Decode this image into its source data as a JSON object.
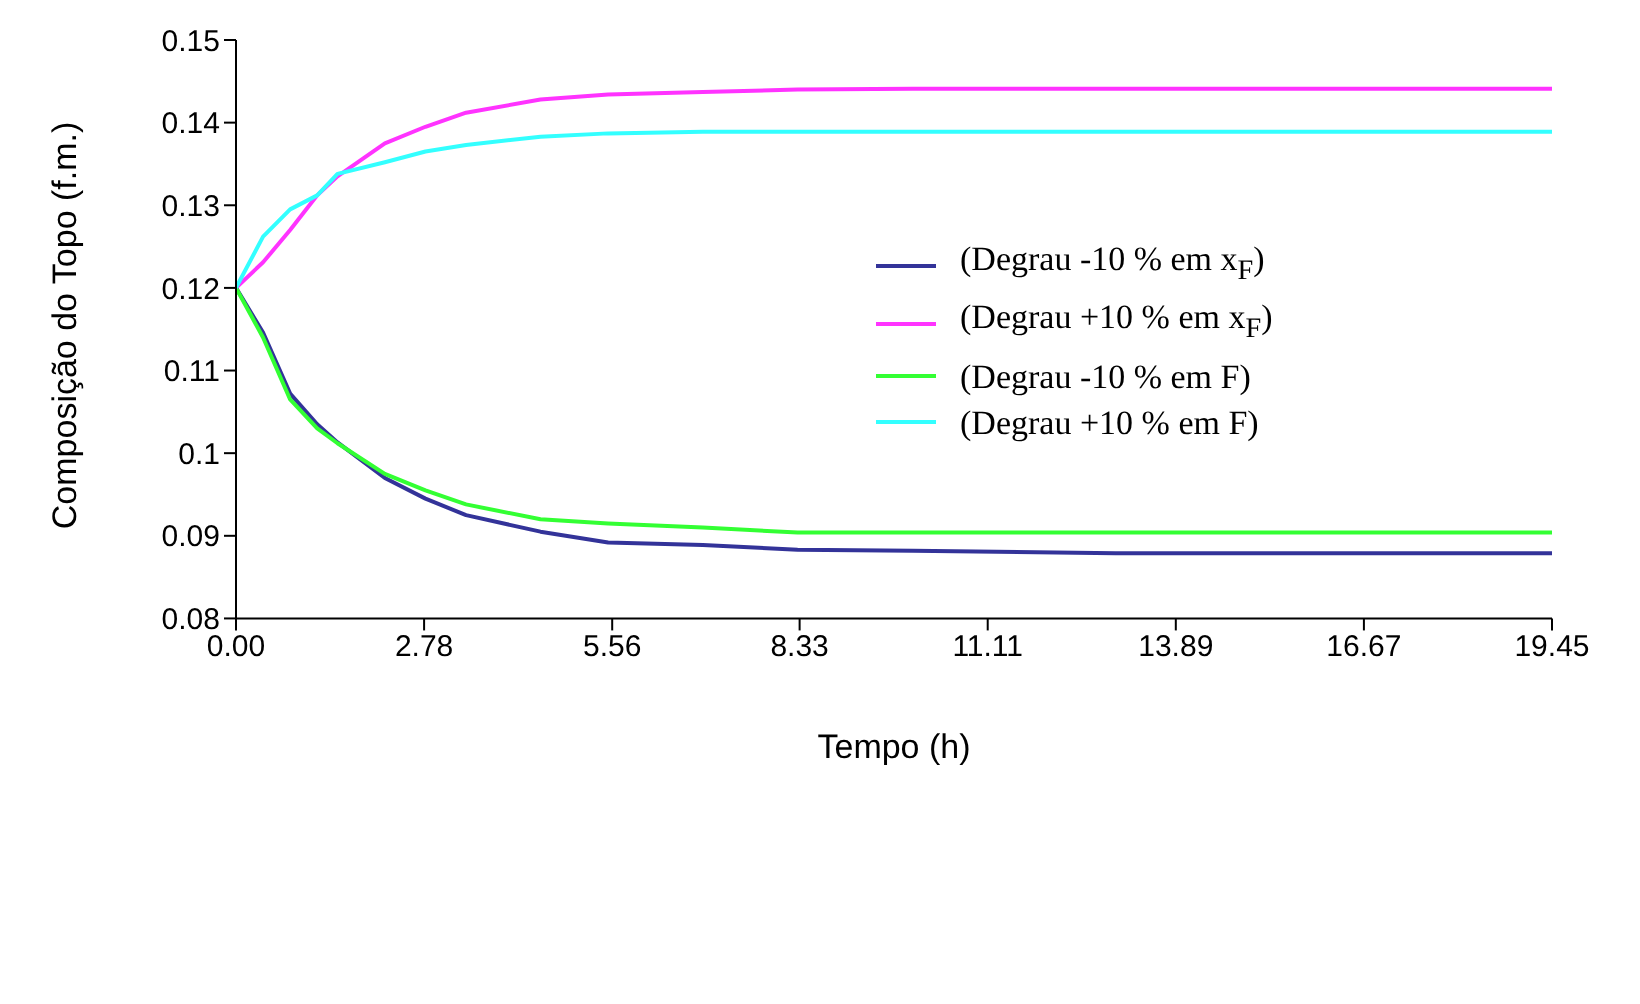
{
  "chart_data": {
    "type": "line",
    "xlabel": "Tempo (h)",
    "ylabel": "Composição do Topo (f.m.)",
    "x": [
      0,
      0.4,
      0.8,
      1.2,
      1.5,
      2.2,
      2.8,
      3.4,
      4.5,
      5.5,
      6.9,
      8.3,
      10,
      13,
      19.45
    ],
    "series": [
      {
        "name": "(Degrau -10 % em x$_{F}$)",
        "color": "#333399",
        "values": [
          0.12,
          0.1146,
          0.1072,
          0.1035,
          0.1013,
          0.097,
          0.0945,
          0.0925,
          0.0905,
          0.0892,
          0.0889,
          0.0883,
          0.0882,
          0.0879,
          0.0879
        ]
      },
      {
        "name": "(Degrau +10 % em x$_{F}$)",
        "color": "#ff33ff",
        "values": [
          0.12,
          0.1231,
          0.127,
          0.1312,
          0.1335,
          0.1375,
          0.1395,
          0.1412,
          0.1428,
          0.1434,
          0.1437,
          0.144,
          0.1441,
          0.1441,
          0.1441
        ]
      },
      {
        "name": "(Degrau -10 % em F)",
        "color": "#33ff33",
        "values": [
          0.12,
          0.114,
          0.1065,
          0.103,
          0.1012,
          0.0975,
          0.0955,
          0.0938,
          0.092,
          0.0915,
          0.091,
          0.0904,
          0.0904,
          0.0904,
          0.0904
        ]
      },
      {
        "name": "(Degrau +10 % em F)",
        "color": "#33ffff",
        "values": [
          0.12,
          0.1262,
          0.1295,
          0.1312,
          0.1338,
          0.1352,
          0.1365,
          0.1373,
          0.1383,
          0.1387,
          0.1389,
          0.1389,
          0.1389,
          0.1389,
          0.1389
        ]
      }
    ],
    "xlim": [
      0,
      19.45
    ],
    "xticks": [
      {
        "value": 0,
        "label": "0.00"
      },
      2.78,
      5.56,
      8.33,
      11.11,
      13.89,
      16.67,
      19.45
    ],
    "ylim": [
      0.08,
      0.15
    ],
    "yticks": [
      0.08,
      0.09,
      0.1,
      0.11,
      0.12,
      0.13,
      0.14,
      0.15
    ],
    "grid": false,
    "legend": "right",
    "marker": "none",
    "line_style": "solid"
  }
}
